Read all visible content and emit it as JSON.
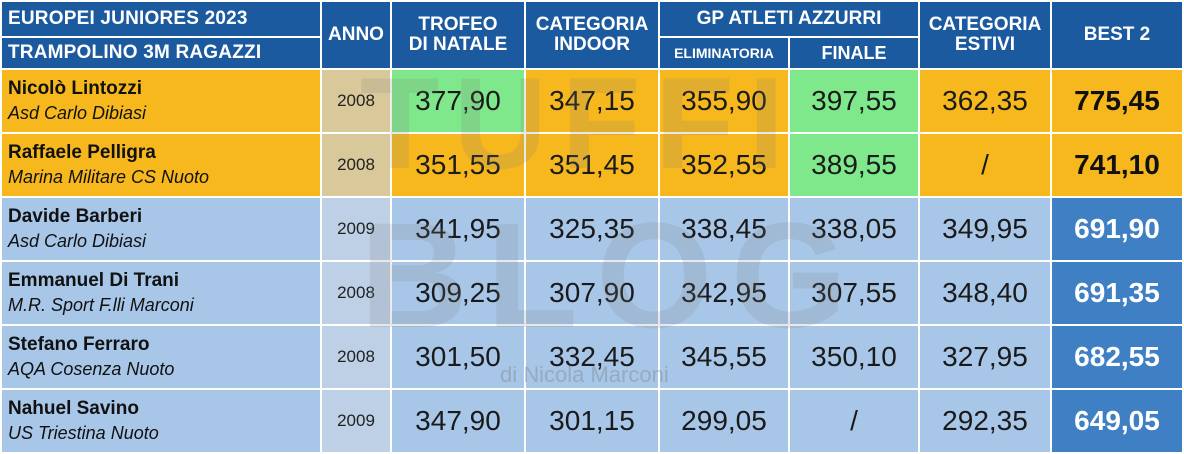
{
  "header": {
    "title_line1": "EUROPEI JUNIORES 2023",
    "title_line2": "TRAMPOLINO 3M RAGAZZI",
    "anno": "ANNO",
    "trofeo_line1": "TROFEO",
    "trofeo_line2": "DI NATALE",
    "indoor_line1": "CATEGORIA",
    "indoor_line2": "INDOOR",
    "gp": "GP ATLETI AZZURRI",
    "eliminatoria": "ELIMINATORIA",
    "finale": "FINALE",
    "estivi_line1": "CATEGORIA",
    "estivi_line2": "ESTIVI",
    "best": "BEST 2"
  },
  "rows": [
    {
      "name": "Nicolò Lintozzi",
      "club": "Asd Carlo Dibiasi",
      "year": "2008",
      "trofeo": "377,90",
      "indoor": "347,15",
      "elim": "355,90",
      "finale": "397,55",
      "estivi": "362,35",
      "best": "775,45"
    },
    {
      "name": "Raffaele Pelligra",
      "club": "Marina Militare CS Nuoto",
      "year": "2008",
      "trofeo": "351,55",
      "indoor": "351,45",
      "elim": "352,55",
      "finale": "389,55",
      "estivi": "/",
      "best": "741,10"
    },
    {
      "name": "Davide Barberi",
      "club": "Asd Carlo Dibiasi",
      "year": "2009",
      "trofeo": "341,95",
      "indoor": "325,35",
      "elim": "338,45",
      "finale": "338,05",
      "estivi": "349,95",
      "best": "691,90"
    },
    {
      "name": "Emmanuel Di Trani",
      "club": "M.R. Sport F.lli Marconi",
      "year": "2008",
      "trofeo": "309,25",
      "indoor": "307,90",
      "elim": "342,95",
      "finale": "307,55",
      "estivi": "348,40",
      "best": "691,35"
    },
    {
      "name": "Stefano Ferraro",
      "club": "AQA Cosenza Nuoto",
      "year": "2008",
      "trofeo": "301,50",
      "indoor": "332,45",
      "elim": "345,55",
      "finale": "350,10",
      "estivi": "327,95",
      "best": "682,55"
    },
    {
      "name": "Nahuel Savino",
      "club": "US Triestina Nuoto",
      "year": "2009",
      "trofeo": "347,90",
      "indoor": "301,15",
      "elim": "299,05",
      "finale": "/",
      "estivi": "292,35",
      "best": "649,05"
    }
  ],
  "watermark": {
    "line1": "TUFFI",
    "line2": "BLOG",
    "credit": "di Nicola Marconi"
  },
  "colors": {
    "header_blue": "#1c5aa0",
    "qualified_gold": "#f7b81e",
    "other_blue": "#a8c7e8",
    "best_score_green": "#7ee88a",
    "best_total_blue": "#3f7fc4"
  }
}
